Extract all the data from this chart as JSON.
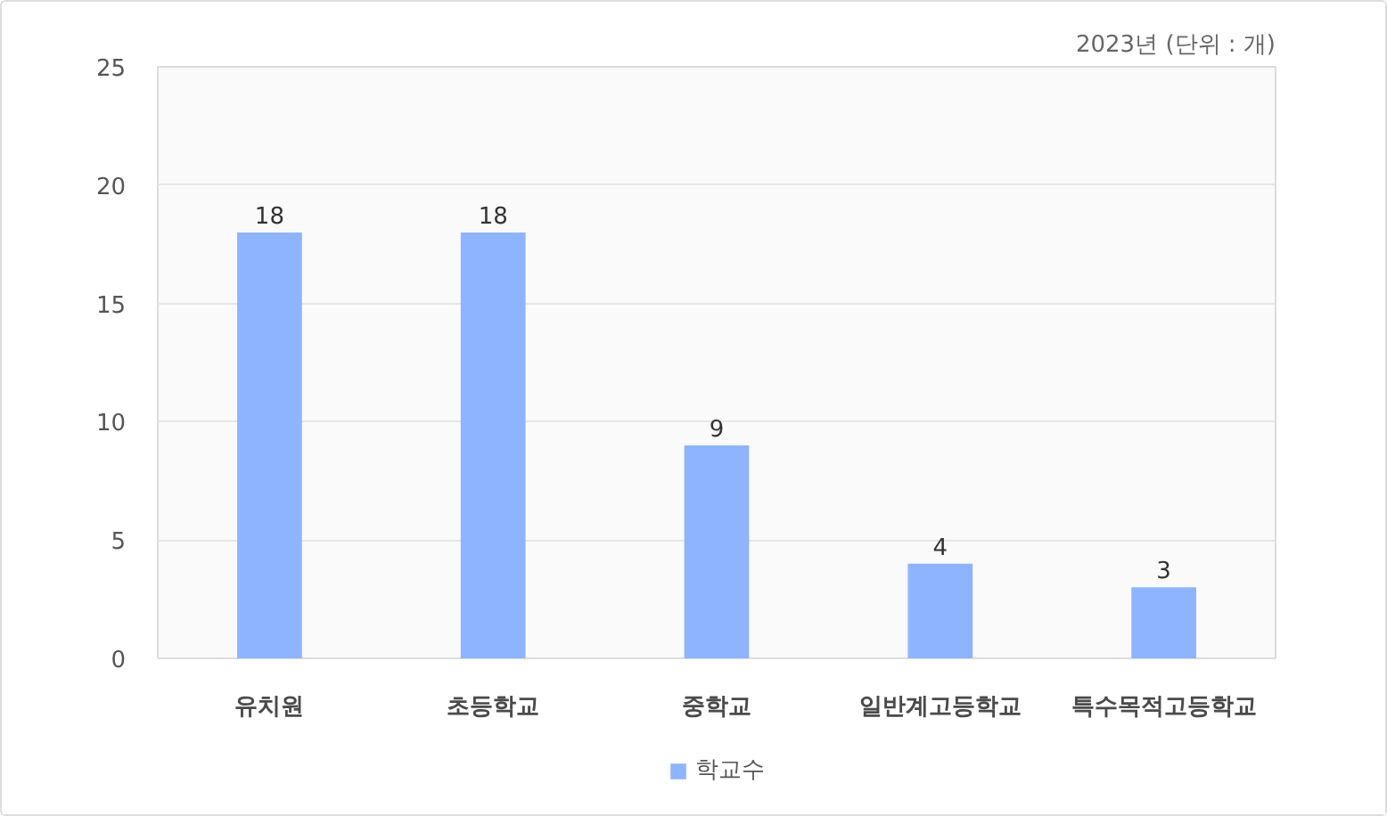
{
  "chart_data": {
    "type": "bar",
    "annotations": [
      "2023년 (단위 : 개)"
    ],
    "categories": [
      "유치원",
      "초등학교",
      "중학교",
      "일반계고등학교",
      "특수목적고등학교"
    ],
    "series": [
      {
        "name": "학교수",
        "color": "#8fb4ff",
        "values": [
          18,
          18,
          9,
          4,
          3
        ]
      }
    ],
    "ylim": [
      0,
      25
    ],
    "yticks": [
      0,
      5,
      10,
      15,
      20,
      25
    ],
    "grid": "y",
    "legend": "bottom",
    "data_labels": true
  }
}
